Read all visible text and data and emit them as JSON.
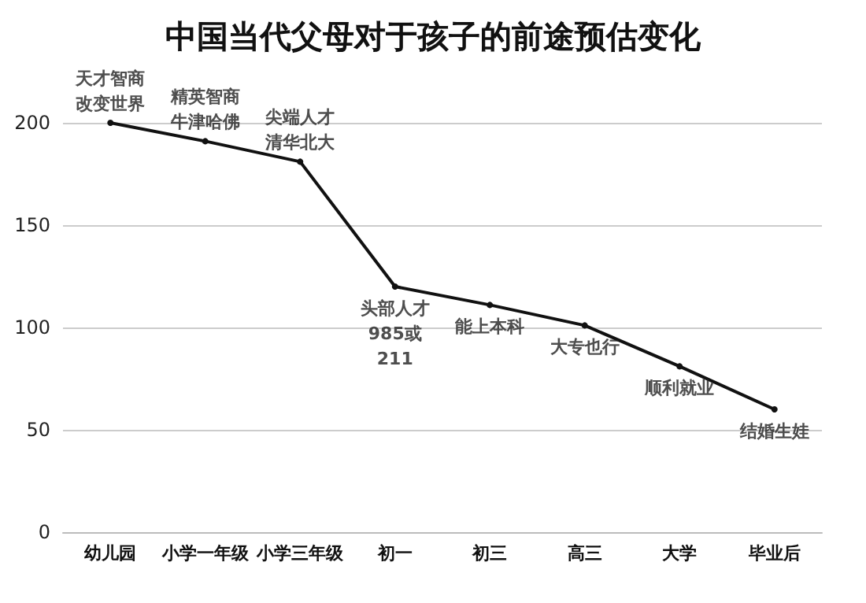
{
  "chart_data": {
    "type": "line",
    "title": "中国当代父母对于孩子的前途预估变化",
    "categories": [
      "幼儿园",
      "小学一年级",
      "小学三年级",
      "初一",
      "初三",
      "高三",
      "大学",
      "毕业后"
    ],
    "series": [
      {
        "color": "#111111",
        "values": [
          200,
          191,
          181,
          120,
          111,
          101,
          81,
          60
        ]
      }
    ],
    "ylim": [
      0,
      200
    ],
    "yticks": [
      0,
      50,
      100,
      150,
      200
    ],
    "grid": "y",
    "marker": "circle",
    "line_style": "solid",
    "annotations": [
      {
        "text": "天才智商改变世界",
        "x": "幼儿园",
        "y": 200
      },
      {
        "text": "精英智商牛津哈佛",
        "x": "小学一年级",
        "y": 191
      },
      {
        "text": "尖端人才清华北大",
        "x": "小学三年级",
        "y": 181
      },
      {
        "text": "头部人才985或211",
        "x": "初一",
        "y": 120
      },
      {
        "text": "能上本科",
        "x": "初三",
        "y": 111
      },
      {
        "text": "大专也行",
        "x": "高三",
        "y": 101
      },
      {
        "text": "顺利就业",
        "x": "大学",
        "y": 81
      },
      {
        "text": "结婚生娃",
        "x": "毕业后",
        "y": 60
      }
    ]
  }
}
